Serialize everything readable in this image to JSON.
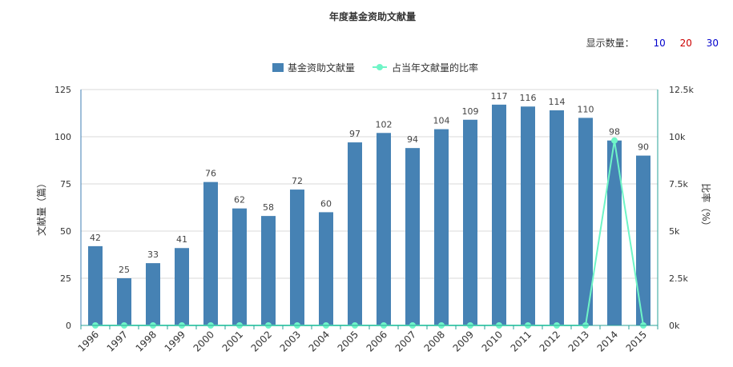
{
  "chart_data": {
    "type": "bar",
    "title": "年度基金资助文献量",
    "categories": [
      "1996",
      "1997",
      "1998",
      "1999",
      "2000",
      "2001",
      "2002",
      "2003",
      "2004",
      "2005",
      "2006",
      "2007",
      "2008",
      "2009",
      "2010",
      "2011",
      "2012",
      "2013",
      "2014",
      "2015"
    ],
    "series": [
      {
        "name": "基金资助文献量",
        "type": "bar",
        "axis": "left",
        "color": "#4682b4",
        "values": [
          42,
          25,
          33,
          41,
          76,
          62,
          58,
          72,
          60,
          97,
          102,
          94,
          104,
          109,
          117,
          116,
          114,
          110,
          98,
          90
        ]
      },
      {
        "name": "占当年文献量的比率",
        "type": "line",
        "axis": "right",
        "color": "#6ff5c7",
        "values": [
          0,
          0,
          0,
          0,
          0,
          0,
          0,
          0,
          0,
          0,
          0,
          0,
          0,
          0,
          0,
          0,
          0,
          0,
          9800,
          0
        ]
      }
    ],
    "ylabel": "文献量（篇）",
    "ylabel_right": "比率（%）",
    "ylim": [
      0,
      125
    ],
    "yticks": [
      "0",
      "25",
      "50",
      "75",
      "100",
      "125"
    ],
    "ylim_right": [
      0,
      12500
    ],
    "yticks_right": [
      "0k",
      "2.5k",
      "5k",
      "7.5k",
      "10k",
      "12.5k"
    ],
    "grid": true,
    "legend_position": "top-center"
  },
  "controls": {
    "label": "显示数量：",
    "options": [
      {
        "label": "10",
        "color": "#0000cc"
      },
      {
        "label": "20",
        "color": "#cc0000"
      },
      {
        "label": "30",
        "color": "#0000cc"
      }
    ]
  }
}
